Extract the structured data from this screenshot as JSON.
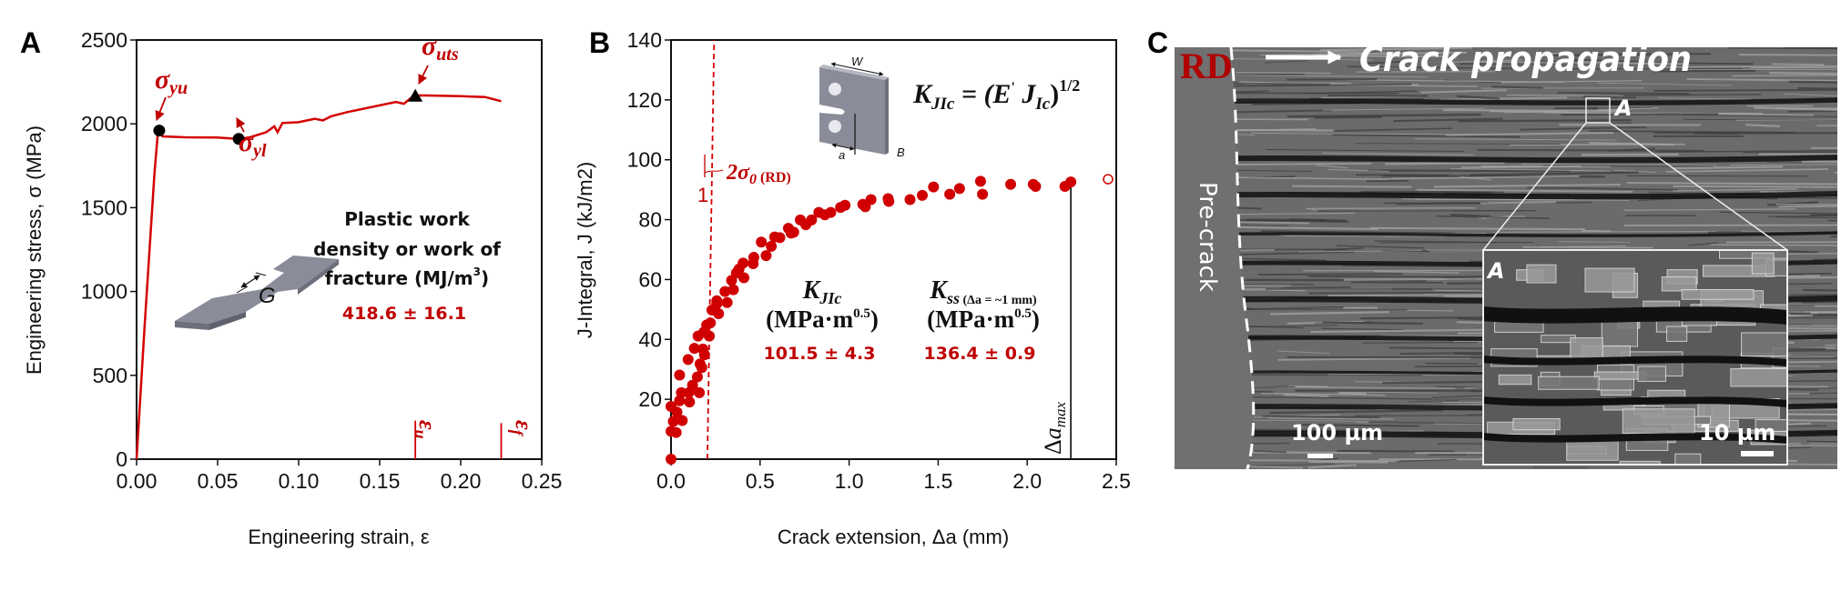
{
  "panels": {
    "a": {
      "label": "A",
      "annotations": {
        "sigma": "σ",
        "yu": "yu",
        "yl": "yl",
        "uts": "uts",
        "epsilon": "ε",
        "u": "u",
        "f": "f",
        "gauge": "G"
      },
      "info": {
        "line1": "Plastic work",
        "line2": "density or work of",
        "line3": "fracture (MJ/m",
        "line3_sup": "3",
        "line3_end": ")",
        "value": "418.6 ± 16.1"
      }
    },
    "b": {
      "label": "B",
      "formula": {
        "k": "K",
        "k_sub": "JIc",
        "eq": " = (E",
        "prime": "'",
        "j": " J",
        "j_sub": "Ic",
        "close": ")",
        "exp": "1/2"
      },
      "specimen_labels": {
        "w": "W",
        "a": "a",
        "b": "B"
      },
      "slope": {
        "one": "1",
        "two": "2σ",
        "zero": "0",
        "rd": " (RD)"
      },
      "kjic": {
        "k": "K",
        "sub": "JIc",
        "unit": "(MPa·m",
        "unit_exp": "0.5",
        "unit_close": ")",
        "value": "101.5 ± 4.3"
      },
      "kss": {
        "k": "K",
        "sub": "ss",
        "cond": " (Δa = ~1 mm)",
        "unit": "(MPa·m",
        "unit_exp": "0.5",
        "unit_close": ")",
        "value": "136.4 ± 0.9"
      },
      "da_max": {
        "delta": "Δ",
        "a": "a",
        "sub": "max"
      }
    },
    "c": {
      "label": "C",
      "rd": "RD",
      "crack_propagation": "Crack propagation",
      "pre_crack": "Pre-crack",
      "region_marker": "A",
      "inset_marker": "A",
      "scale_main": "100 µm",
      "scale_inset": "10 µm"
    }
  },
  "colors": {
    "accent": "#c00000",
    "axis": "#111111",
    "specimen": "#8a8d99",
    "sem_bg": "#6b6b6b"
  },
  "chart_data": [
    {
      "type": "line",
      "panel": "A",
      "xlabel": "Engineering strain, ε",
      "ylabel": "Engineering stress, σ (MPa)",
      "xlim": [
        0,
        0.25
      ],
      "ylim": [
        0,
        2500
      ],
      "xticks": [
        "0.00",
        "0.05",
        "0.10",
        "0.15",
        "0.20",
        "0.25"
      ],
      "yticks": [
        "0",
        "500",
        "1000",
        "1500",
        "2000",
        "2500"
      ],
      "grid": false,
      "series": [
        {
          "x": [
            0,
            0.005,
            0.011,
            0.013,
            0.014,
            0.016,
            0.03,
            0.05,
            0.063,
            0.07,
            0.08,
            0.085,
            0.087,
            0.09,
            0.1,
            0.11,
            0.115,
            0.12,
            0.13,
            0.15,
            0.16,
            0.165,
            0.17,
            0.175,
            0.2,
            0.215,
            0.225
          ],
          "y": [
            0,
            800,
            1700,
            1930,
            1960,
            1925,
            1920,
            1918,
            1910,
            1920,
            1950,
            1985,
            1950,
            2005,
            2010,
            2030,
            2020,
            2045,
            2070,
            2110,
            2130,
            2120,
            2160,
            2170,
            2165,
            2160,
            2135
          ]
        }
      ],
      "markers": [
        {
          "name": "σyu",
          "shape": "circle",
          "x": 0.014,
          "y": 1960
        },
        {
          "name": "σyl",
          "shape": "circle",
          "x": 0.063,
          "y": 1910
        },
        {
          "name": "σuts",
          "shape": "triangle",
          "x": 0.172,
          "y": 2165
        }
      ],
      "vlines": [
        {
          "name": "εu",
          "x": 0.172,
          "y_to": 230
        },
        {
          "name": "εf",
          "x": 0.225,
          "y_to": 215
        }
      ]
    },
    {
      "type": "scatter",
      "panel": "B",
      "xlabel": "Crack extension, Δa (mm)",
      "ylabel": "J-Integral, J (kJ/m2)",
      "xlim": [
        0,
        2.5
      ],
      "ylim": [
        0,
        140
      ],
      "xticks": [
        "0.0",
        "0.5",
        "1.0",
        "1.5",
        "2.0",
        "2.5"
      ],
      "yticks": [
        "20",
        "40",
        "60",
        "80",
        "100",
        "120",
        "140"
      ],
      "grid": false,
      "points": [
        [
          0,
          0
        ],
        [
          0,
          17.6
        ],
        [
          0,
          9.3
        ],
        [
          0.013,
          12.6
        ],
        [
          0.029,
          8.9
        ],
        [
          0.033,
          15.7
        ],
        [
          0.048,
          28.1
        ],
        [
          0.048,
          19.5
        ],
        [
          0.058,
          22.2
        ],
        [
          0.063,
          12.9
        ],
        [
          0.096,
          33.3
        ],
        [
          0.1,
          22.2
        ],
        [
          0.104,
          19.1
        ],
        [
          0.121,
          24.7
        ],
        [
          0.131,
          37
        ],
        [
          0.148,
          27.5
        ],
        [
          0.152,
          41.1
        ],
        [
          0.159,
          22.2
        ],
        [
          0.163,
          31.8
        ],
        [
          0.173,
          30.6
        ],
        [
          0.179,
          36.8
        ],
        [
          0.184,
          42.4
        ],
        [
          0.188,
          34.9
        ],
        [
          0.2,
          44.8
        ],
        [
          0.215,
          41.1
        ],
        [
          0.221,
          45.5
        ],
        [
          0.23,
          49.8
        ],
        [
          0.257,
          52.9
        ],
        [
          0.257,
          51.9
        ],
        [
          0.267,
          48.6
        ],
        [
          0.303,
          56
        ],
        [
          0.315,
          52.3
        ],
        [
          0.34,
          59.7
        ],
        [
          0.35,
          56.6
        ],
        [
          0.367,
          62.2
        ],
        [
          0.382,
          63.5
        ],
        [
          0.405,
          65.5
        ],
        [
          0.409,
          60.6
        ],
        [
          0.461,
          65.3
        ],
        [
          0.465,
          67.4
        ],
        [
          0.507,
          72.5
        ],
        [
          0.534,
          68
        ],
        [
          0.563,
          71.1
        ],
        [
          0.582,
          74.2
        ],
        [
          0.611,
          74
        ],
        [
          0.659,
          77.1
        ],
        [
          0.674,
          75.5
        ],
        [
          0.689,
          75.8
        ],
        [
          0.726,
          79.9
        ],
        [
          0.757,
          78.3
        ],
        [
          0.789,
          79.9
        ],
        [
          0.83,
          82.4
        ],
        [
          0.864,
          81.6
        ],
        [
          0.897,
          82.4
        ],
        [
          0.952,
          84.1
        ],
        [
          0.977,
          84.8
        ],
        [
          1.077,
          85.1
        ],
        [
          1.091,
          84.3
        ],
        [
          1.123,
          86.7
        ],
        [
          1.219,
          87
        ],
        [
          1.223,
          86.1
        ],
        [
          1.342,
          86.7
        ],
        [
          1.411,
          88.1
        ],
        [
          1.474,
          90.9
        ],
        [
          1.565,
          88.5
        ],
        [
          1.62,
          90.4
        ],
        [
          1.738,
          92.8
        ],
        [
          1.749,
          88.5
        ],
        [
          1.907,
          91.8
        ],
        [
          2.034,
          91.8
        ],
        [
          2.047,
          91.1
        ],
        [
          2.212,
          91.1
        ],
        [
          2.245,
          92.6
        ]
      ],
      "open_points": [
        [
          2.454,
          93.5
        ]
      ],
      "blunting_line": {
        "x_at_0": 0.204,
        "x_at_140": 0.242
      },
      "da_max_line": {
        "x": 2.245,
        "y_to": 91
      }
    }
  ]
}
